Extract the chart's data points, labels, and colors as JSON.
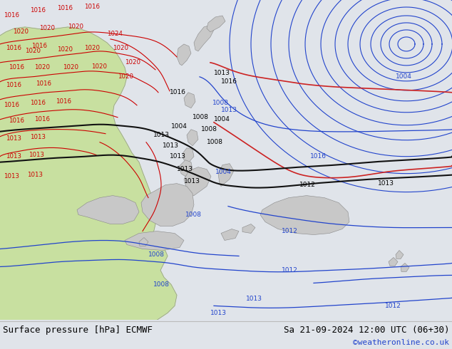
{
  "title_left": "Surface pressure [hPa] ECMWF",
  "title_right": "Sa 21-09-2024 12:00 UTC (06+30)",
  "credit": "©weatheronline.co.uk",
  "ocean_color": "#e0e4ea",
  "land_green": "#c8e0a0",
  "land_grey": "#c8c8c8",
  "border_red": "#cc0000",
  "isobar_blue": "#2244cc",
  "isobar_black": "#111111",
  "isobar_red": "#cc2222",
  "bottom_bg": "#f0f0f0",
  "credit_color": "#2244cc",
  "fig_width": 6.34,
  "fig_height": 4.9,
  "dpi": 100
}
